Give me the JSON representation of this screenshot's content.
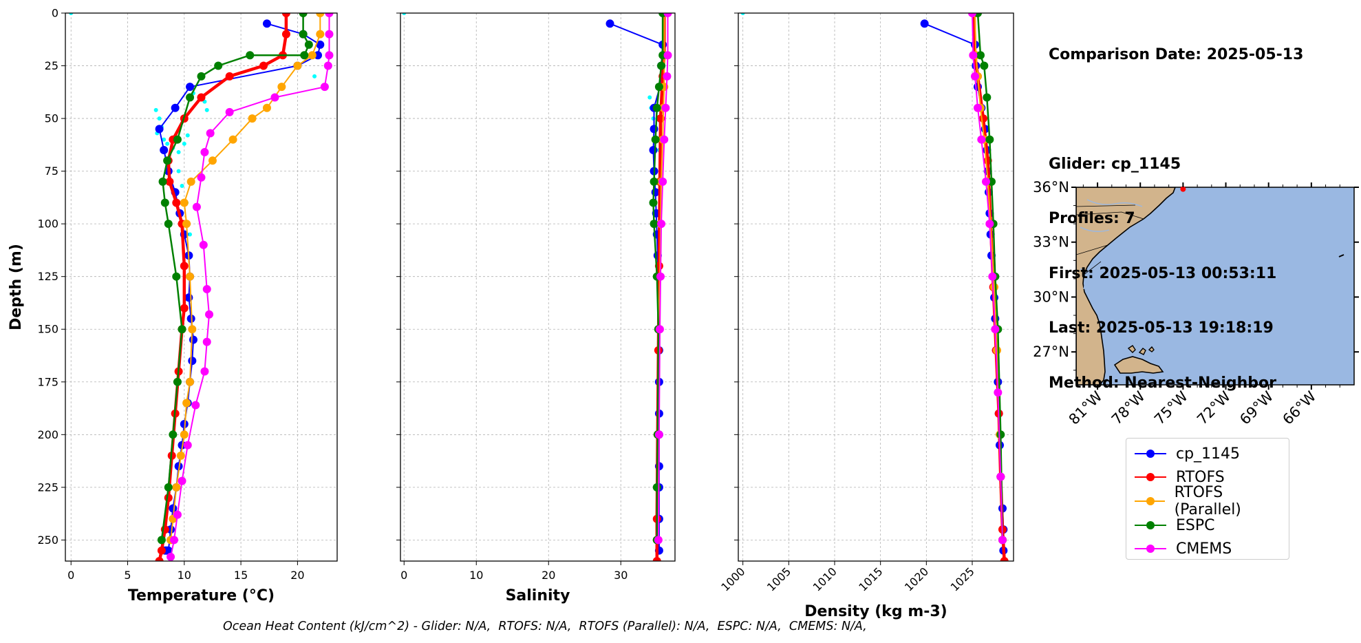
{
  "info": {
    "comparison_date": "Comparison Date: 2025-05-13",
    "glider": "Glider: cp_1145",
    "profiles": "Profiles: 7",
    "first": "First: 2025-05-13 00:53:11",
    "last": "Last: 2025-05-13 19:18:19",
    "method": "Method: Nearest-Neighbor"
  },
  "footer": "Ocean Heat Content (kJ/cm^2) - Glider: N/A,  RTOFS: N/A,  RTOFS (Parallel): N/A,  ESPC: N/A,  CMEMS: N/A,",
  "colors": {
    "cp_1145": "#0000ff",
    "RTOFS": "#ff0000",
    "RTOFS (Parallel)": "#ffa500",
    "ESPC": "#008000",
    "CMEMS": "#ff00ff",
    "glider_raw": "#00ffff",
    "land": "#d2b48c",
    "ocean": "#9ab8e2"
  },
  "legend": [
    {
      "label": "cp_1145",
      "color": "#0000ff"
    },
    {
      "label": "RTOFS",
      "color": "#ff0000"
    },
    {
      "label": "RTOFS (Parallel)",
      "color": "#ffa500"
    },
    {
      "label": "ESPC",
      "color": "#008000"
    },
    {
      "label": "CMEMS",
      "color": "#ff00ff"
    }
  ],
  "chart_data": [
    {
      "type": "line",
      "xlabel": "Temperature (°C)",
      "ylabel": "Depth (m)",
      "xlim": [
        -0.5,
        23.5
      ],
      "ylim": [
        260,
        0
      ],
      "xticks": [
        0,
        5,
        10,
        15,
        20
      ],
      "yticks": [
        0,
        25,
        50,
        75,
        100,
        125,
        150,
        175,
        200,
        225,
        250
      ],
      "grid": true,
      "raw_glider": {
        "name": "cp_1145 (profiles)",
        "x": [
          7.5,
          7.8,
          8.0,
          7.6,
          8.2,
          8.5,
          9.0,
          9.5,
          10.0,
          10.3,
          10.8,
          11.3,
          11.8,
          12.0,
          9.5,
          9.8,
          10.2,
          10.5,
          21.5,
          0.0
        ],
        "y": [
          46,
          50,
          54,
          57,
          60,
          62,
          64,
          66,
          62,
          58,
          38,
          40,
          42,
          46,
          75,
          82,
          90,
          105,
          30,
          0
        ]
      },
      "series": [
        {
          "name": "cp_1145",
          "x": [
            17.3,
            20.5,
            22.0,
            21.8,
            20.0,
            10.5,
            9.2,
            7.8,
            8.2,
            8.6,
            9.2,
            9.6,
            10.0,
            10.4,
            10.5,
            10.4,
            10.6,
            10.8,
            10.7,
            10.5,
            10.3,
            10.0,
            9.8,
            9.5,
            9.3,
            9.0,
            8.8,
            8.6,
            8.5,
            8.4,
            8.3
          ],
          "y": [
            5,
            10,
            15,
            20,
            25,
            35,
            45,
            55,
            65,
            75,
            85,
            95,
            105,
            115,
            125,
            135,
            145,
            155,
            165,
            175,
            185,
            195,
            205,
            215,
            225,
            235,
            245,
            255,
            255,
            255,
            255
          ]
        },
        {
          "name": "RTOFS",
          "x": [
            19.0,
            19.0,
            18.7,
            17.0,
            14.0,
            11.5,
            10.0,
            9.0,
            8.6,
            8.7,
            9.3,
            9.8,
            10.0,
            10.0,
            9.8,
            9.5,
            9.2,
            8.9,
            8.6,
            8.3,
            8.0,
            7.8
          ],
          "y": [
            0,
            10,
            20,
            25,
            30,
            40,
            50,
            60,
            70,
            80,
            90,
            100,
            120,
            140,
            150,
            170,
            190,
            210,
            230,
            245,
            255,
            260
          ]
        },
        {
          "name": "RTOFS (Parallel)",
          "x": [
            22.0,
            22.0,
            21.3,
            20.0,
            18.6,
            17.3,
            16.0,
            14.3,
            12.5,
            10.6,
            10.0,
            10.2,
            10.5,
            10.7,
            10.5,
            10.2,
            10.0,
            9.7,
            9.3,
            9.0,
            8.8
          ],
          "y": [
            0,
            10,
            20,
            25,
            35,
            45,
            50,
            60,
            70,
            80,
            90,
            100,
            125,
            150,
            175,
            185,
            200,
            210,
            225,
            240,
            250
          ]
        },
        {
          "name": "ESPC",
          "x": [
            20.5,
            20.5,
            21.0,
            20.6,
            15.8,
            13.0,
            11.5,
            10.5,
            9.4,
            8.5,
            8.1,
            8.3,
            8.6,
            9.3,
            9.8,
            9.4,
            9.0,
            8.6,
            8.0
          ],
          "y": [
            0,
            10,
            15,
            20,
            20,
            25,
            30,
            40,
            60,
            70,
            80,
            90,
            100,
            125,
            150,
            175,
            200,
            225,
            250
          ]
        },
        {
          "name": "CMEMS",
          "x": [
            22.8,
            22.8,
            22.8,
            22.7,
            22.4,
            18.0,
            14.0,
            12.3,
            11.8,
            11.5,
            11.1,
            11.7,
            12.0,
            12.2,
            12.0,
            11.8,
            11.0,
            10.3,
            9.8,
            9.4,
            9.1,
            8.8
          ],
          "y": [
            0,
            10,
            20,
            25,
            35,
            40,
            47,
            57,
            66,
            78,
            92,
            110,
            131,
            143,
            156,
            170,
            186,
            205,
            222,
            238,
            250,
            258
          ]
        }
      ]
    },
    {
      "type": "line",
      "xlabel": "Salinity",
      "ylabel": "",
      "xlim": [
        -0.5,
        37.5
      ],
      "ylim": [
        260,
        0
      ],
      "xticks": [
        0,
        10,
        20,
        30
      ],
      "yticks": [
        0,
        25,
        50,
        75,
        100,
        125,
        150,
        175,
        200,
        225,
        250
      ],
      "grid": true,
      "raw_glider": {
        "name": "cp_1145 (profiles)",
        "x": [
          34.0,
          34.2,
          34.5,
          34.8,
          35.0,
          35.3,
          0.0
        ],
        "y": [
          40,
          45,
          50,
          55,
          60,
          65,
          0
        ]
      },
      "series": [
        {
          "name": "cp_1145",
          "x": [
            28.5,
            35.8,
            35.6,
            35.4,
            34.6,
            34.6,
            34.5,
            34.6,
            34.8,
            34.9,
            35.0,
            35.1,
            35.2,
            35.3,
            35.3,
            35.3,
            35.3,
            35.3,
            35.3,
            35.3,
            35.3
          ],
          "y": [
            5,
            15,
            25,
            35,
            45,
            55,
            65,
            75,
            85,
            95,
            105,
            115,
            150,
            160,
            175,
            190,
            200,
            215,
            225,
            240,
            255
          ]
        },
        {
          "name": "RTOFS",
          "x": [
            36.0,
            36.0,
            35.8,
            35.5,
            35.4,
            35.3,
            35.2,
            35.1,
            35.0,
            35.0
          ],
          "y": [
            0,
            20,
            30,
            50,
            80,
            120,
            160,
            200,
            240,
            260
          ]
        },
        {
          "name": "RTOFS (Parallel)",
          "x": [
            36.0,
            36.0,
            36.0,
            35.9,
            35.8,
            35.6,
            35.5,
            35.4,
            35.2,
            35.1,
            35.0
          ],
          "y": [
            0,
            20,
            35,
            45,
            60,
            80,
            100,
            125,
            150,
            200,
            250
          ]
        },
        {
          "name": "ESPC",
          "x": [
            35.8,
            35.8,
            35.6,
            35.3,
            35.0,
            34.8,
            34.6,
            34.5,
            34.6,
            35.0,
            35.2,
            35.1,
            35.0,
            35.0
          ],
          "y": [
            0,
            20,
            25,
            35,
            45,
            60,
            80,
            90,
            100,
            125,
            150,
            200,
            225,
            250
          ]
        },
        {
          "name": "CMEMS",
          "x": [
            36.5,
            36.5,
            36.4,
            36.2,
            36.0,
            35.8,
            35.6,
            35.5,
            35.4,
            35.3,
            35.2
          ],
          "y": [
            0,
            20,
            30,
            45,
            60,
            80,
            100,
            125,
            150,
            200,
            250
          ]
        }
      ]
    },
    {
      "type": "line",
      "xlabel": "Density (kg m-3)",
      "ylabel": "",
      "xlim": [
        999.5,
        1029.5
      ],
      "ylim": [
        260,
        0
      ],
      "xticks": [
        1000,
        1005,
        1010,
        1015,
        1020,
        1025
      ],
      "yticks": [
        0,
        25,
        50,
        75,
        100,
        125,
        150,
        175,
        200,
        225,
        250
      ],
      "grid": true,
      "raw_glider": {
        "name": "cp_1145 (profiles)",
        "x": [
          1000.0
        ],
        "y": [
          0
        ]
      },
      "series": [
        {
          "name": "cp_1145",
          "x": [
            1019.8,
            1025.3,
            1025.4,
            1025.6,
            1026.0,
            1026.4,
            1026.6,
            1026.7,
            1026.8,
            1026.9,
            1027.0,
            1027.1,
            1027.3,
            1027.4,
            1027.5,
            1027.6,
            1027.8,
            1027.9,
            1028.0,
            1028.1,
            1028.3,
            1028.4,
            1028.4
          ],
          "y": [
            5,
            15,
            25,
            35,
            45,
            55,
            65,
            75,
            85,
            95,
            105,
            115,
            125,
            135,
            145,
            160,
            175,
            190,
            205,
            220,
            235,
            245,
            255
          ]
        },
        {
          "name": "RTOFS",
          "x": [
            1025.2,
            1025.3,
            1025.6,
            1026.2,
            1026.7,
            1027.0,
            1027.3,
            1027.6,
            1027.9,
            1028.1,
            1028.3,
            1028.5
          ],
          "y": [
            0,
            20,
            30,
            50,
            70,
            100,
            130,
            160,
            190,
            220,
            245,
            260
          ]
        },
        {
          "name": "RTOFS (Parallel)",
          "x": [
            1025.3,
            1025.4,
            1025.6,
            1025.9,
            1026.3,
            1026.7,
            1027.0,
            1027.4,
            1027.7,
            1028.0,
            1028.3
          ],
          "y": [
            0,
            20,
            30,
            45,
            60,
            80,
            100,
            130,
            160,
            200,
            250
          ]
        },
        {
          "name": "ESPC",
          "x": [
            1025.6,
            1025.9,
            1026.3,
            1026.6,
            1026.9,
            1027.1,
            1027.3,
            1027.5,
            1027.8,
            1028.1,
            1028.3
          ],
          "y": [
            0,
            20,
            25,
            40,
            60,
            80,
            100,
            125,
            150,
            200,
            250
          ]
        },
        {
          "name": "CMEMS",
          "x": [
            1025.0,
            1025.1,
            1025.3,
            1025.6,
            1026.0,
            1026.5,
            1026.9,
            1027.2,
            1027.5,
            1027.8,
            1028.1,
            1028.3
          ],
          "y": [
            0,
            20,
            30,
            45,
            60,
            80,
            100,
            125,
            150,
            180,
            220,
            250
          ]
        }
      ]
    },
    {
      "type": "map",
      "lat_ticks": [
        "27°N",
        "30°N",
        "33°N",
        "36°N"
      ],
      "lon_ticks": [
        "81°W",
        "78°W",
        "75°W",
        "72°W",
        "69°W",
        "66°W"
      ],
      "extent": {
        "lon": [
          -82.5,
          -63.0
        ],
        "lat": [
          25.2,
          36.0
        ]
      },
      "marker": {
        "lon": -75.0,
        "lat": 35.9,
        "color": "#ff0000"
      }
    }
  ]
}
